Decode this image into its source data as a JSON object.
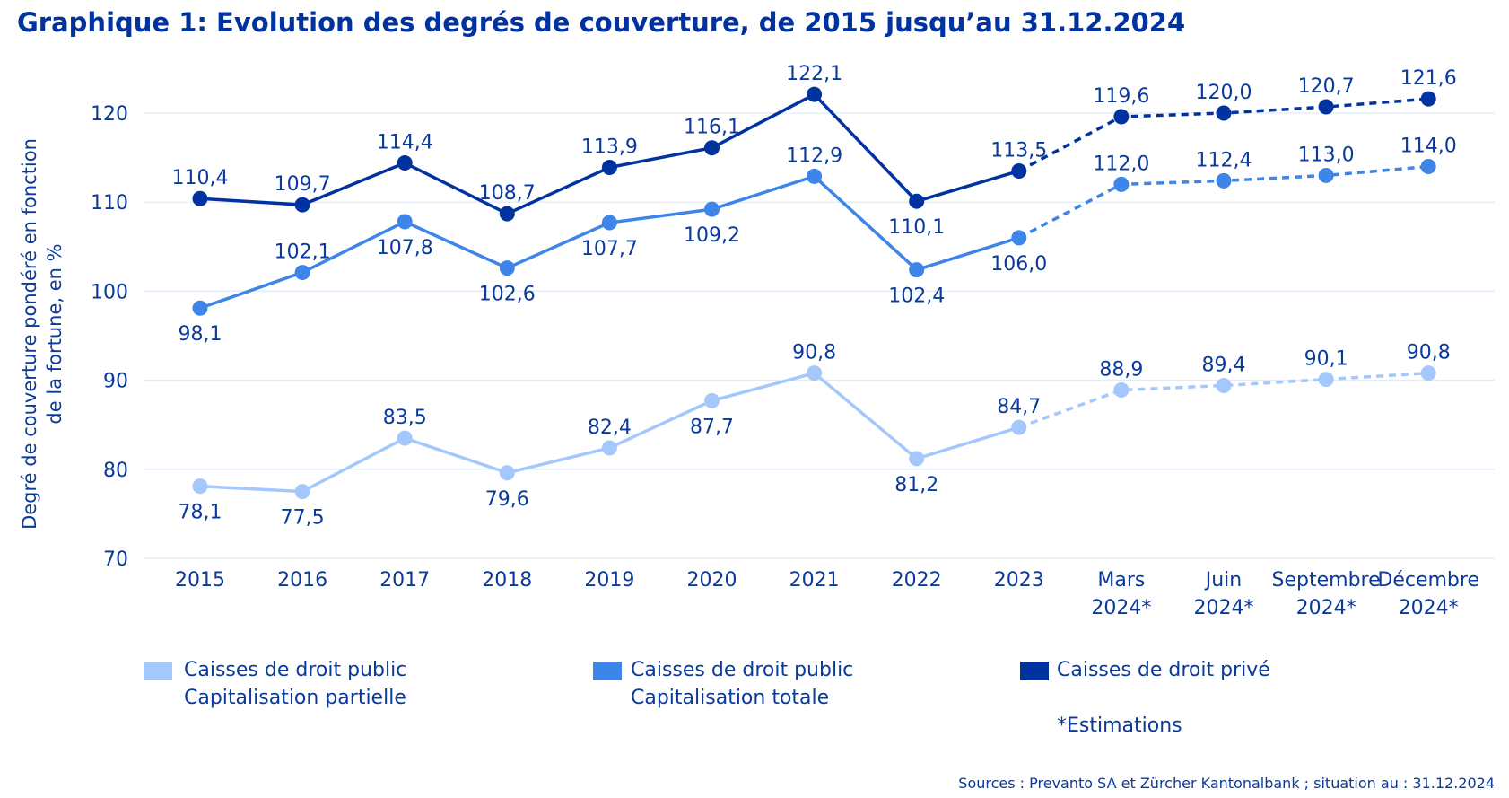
{
  "title": "Graphique 1: Evolution des degrés de couverture, de 2015 jusqu’au 31.12.2024",
  "chart_data": {
    "type": "line",
    "title": "Graphique 1: Evolution des degrés de couverture, de 2015 jusqu’au 31.12.2024",
    "ylabel": [
      "Degré de couverture pondéré en fonction",
      "de la fortune, en %"
    ],
    "xlabel": "",
    "ylim": [
      70,
      125
    ],
    "yticks": [
      70,
      80,
      90,
      100,
      110,
      120
    ],
    "grid": "horizontal",
    "legend_placement": "bottom",
    "categories": [
      [
        "2015"
      ],
      [
        "2016"
      ],
      [
        "2017"
      ],
      [
        "2018"
      ],
      [
        "2019"
      ],
      [
        "2020"
      ],
      [
        "2021"
      ],
      [
        "2022"
      ],
      [
        "2023"
      ],
      [
        "Mars",
        "2024*"
      ],
      [
        "Juin",
        "2024*"
      ],
      [
        "Septembre",
        "2024*"
      ],
      [
        "Décembre",
        "2024*"
      ]
    ],
    "estimated_from_index": 8,
    "series": [
      {
        "name": "Caisses de droit public Capitalisation partielle",
        "legend": [
          "Caisses de droit public",
          "Capitalisation partielle"
        ],
        "color": "#a4c8fb",
        "values": [
          78.1,
          77.5,
          83.5,
          79.6,
          82.4,
          87.7,
          90.8,
          81.2,
          84.7,
          88.9,
          89.4,
          90.1,
          90.8
        ],
        "labels": [
          "78,1",
          "77,5",
          "83,5",
          "79,6",
          "82,4",
          "87,7",
          "90,8",
          "81,2",
          "84,7",
          "88,9",
          "89,4",
          "90,1",
          "90,8"
        ],
        "label_side": [
          "below",
          "below",
          "above",
          "below",
          "above",
          "below",
          "above",
          "below",
          "above",
          "above",
          "above",
          "above",
          "above"
        ]
      },
      {
        "name": "Caisses de droit public Capitalisation totale",
        "legend": [
          "Caisses de droit public",
          "Capitalisation totale"
        ],
        "color": "#3d85e8",
        "values": [
          98.1,
          102.1,
          107.8,
          102.6,
          107.7,
          109.2,
          112.9,
          102.4,
          106.0,
          112.0,
          112.4,
          113.0,
          114.0
        ],
        "labels": [
          "98,1",
          "102,1",
          "107,8",
          "102,6",
          "107,7",
          "109,2",
          "112,9",
          "102,4",
          "106,0",
          "112,0",
          "112,4",
          "113,0",
          "114,0"
        ],
        "label_side": [
          "below",
          "above",
          "below",
          "below",
          "below",
          "below",
          "above",
          "below",
          "below",
          "above",
          "above",
          "above",
          "above"
        ]
      },
      {
        "name": "Caisses de droit privé",
        "legend": [
          "Caisses de droit privé"
        ],
        "color": "#0033a0",
        "values": [
          110.4,
          109.7,
          114.4,
          108.7,
          113.9,
          116.1,
          122.1,
          110.1,
          113.5,
          119.6,
          120.0,
          120.7,
          121.6
        ],
        "labels": [
          "110,4",
          "109,7",
          "114,4",
          "108,7",
          "113,9",
          "116,1",
          "122,1",
          "110,1",
          "113,5",
          "119,6",
          "120,0",
          "120,7",
          "121,6"
        ],
        "label_side": [
          "above",
          "above",
          "above",
          "above",
          "above",
          "above",
          "above",
          "below",
          "above",
          "above",
          "above",
          "above",
          "above"
        ]
      }
    ],
    "note": "*Estimations"
  },
  "sources": "Sources : Prevanto SA et Zürcher Kantonalbank ; situation au : 31.12.2024"
}
